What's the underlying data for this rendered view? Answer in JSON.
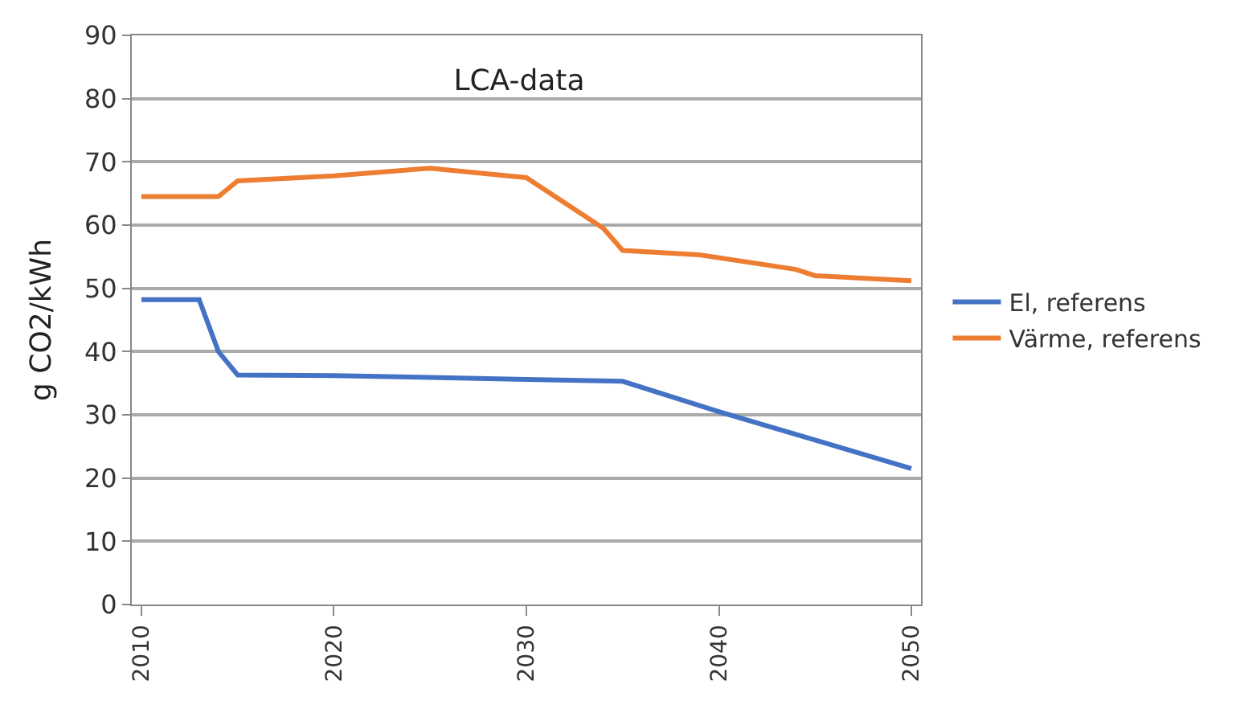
{
  "chart_data": {
    "type": "line",
    "title": "LCA-data",
    "ylabel": "g CO2/kWh",
    "series": [
      {
        "name": "El, referens",
        "color": "#4472c4",
        "x": [
          2010,
          2013,
          2014,
          2015,
          2020,
          2025,
          2030,
          2035,
          2040,
          2045,
          2050
        ],
        "values": [
          48.2,
          48.2,
          40,
          36.3,
          36.2,
          35.9,
          35.6,
          35.3,
          30.5,
          26,
          21.5
        ]
      },
      {
        "name": "Värme, referens",
        "color": "#ed7d31",
        "x": [
          2010,
          2014,
          2015,
          2020,
          2025,
          2030,
          2034,
          2035,
          2039,
          2044,
          2045,
          2050
        ],
        "values": [
          64.5,
          64.5,
          67,
          67.8,
          69,
          67.5,
          59.5,
          56,
          55.3,
          53,
          52,
          51.2
        ]
      }
    ],
    "xlim": [
      2009.5,
      2050.5
    ],
    "xticks": [
      2010,
      2020,
      2030,
      2040,
      2050
    ],
    "ylim": [
      0,
      90
    ],
    "yticks": [
      0,
      10,
      20,
      30,
      40,
      50,
      60,
      70,
      80,
      90
    ],
    "grid": "y",
    "legend": "right",
    "marker": "none",
    "line_style": "solid"
  }
}
